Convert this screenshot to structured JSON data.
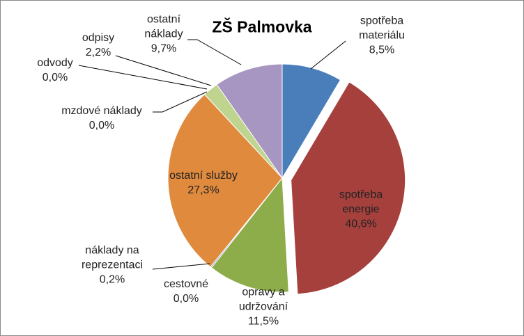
{
  "chart_data": {
    "type": "pie",
    "title": "ZŠ Palmovka",
    "categories": [
      "spotřeba materiálu",
      "spotřeba energie",
      "opravy a udržování",
      "cestovné",
      "náklady na reprezentaci",
      "ostatní služby",
      "mzdové náklady",
      "odvody",
      "odpisy",
      "ostatní náklady"
    ],
    "values": [
      8.5,
      40.6,
      11.5,
      0.0,
      0.2,
      27.3,
      0.0,
      0.0,
      2.2,
      9.7
    ],
    "value_labels": [
      "8,5%",
      "40,6%",
      "11,5%",
      "0,0%",
      "0,2%",
      "27,3%",
      "0,0%",
      "0,0%",
      "2,2%",
      "9,7%"
    ],
    "colors": [
      "#4a7ebb",
      "#a5403d",
      "#8cad4a",
      "#4bacc6",
      "#7f9cc1",
      "#e08a3e",
      "#c0504d",
      "#9bbb59",
      "#bed48f",
      "#a796c1"
    ],
    "exploded": [
      1
    ]
  }
}
